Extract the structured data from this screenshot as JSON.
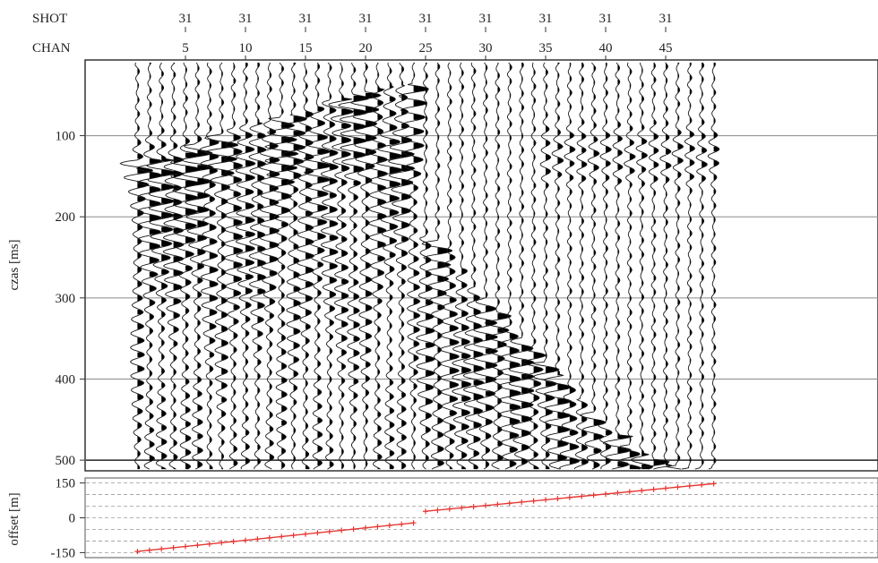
{
  "chart_data": [
    {
      "type": "seismic_record",
      "header": {
        "shot_label": "SHOT",
        "chan_label": "CHAN",
        "labelled_channels": [
          5,
          10,
          15,
          20,
          25,
          30,
          35,
          40,
          45
        ],
        "shot_values": [
          31,
          31,
          31,
          31,
          31,
          31,
          31,
          31,
          31
        ],
        "first_channel_x": 1,
        "last_channel_x": 49
      },
      "ylabel": "czas [ms]",
      "yticks": [
        100,
        200,
        300,
        400,
        500
      ],
      "ylim": [
        10,
        512
      ],
      "grid": true,
      "trace_groups": [
        {
          "first_channel": 1,
          "last_channel": 24,
          "first_arrival_ms": [
            130,
            130,
            130,
            125,
            120,
            112,
            104,
            98,
            92,
            88,
            85,
            82,
            78,
            74,
            70,
            65,
            58,
            54,
            50,
            45,
            42,
            40,
            38,
            36
          ]
        },
        {
          "first_channel": 25,
          "last_channel": 49,
          "first_arrival_ms": [
            225,
            230,
            245,
            265,
            285,
            300,
            318,
            335,
            350,
            365,
            380,
            395,
            410,
            425,
            440,
            455,
            470,
            482,
            492,
            500,
            506,
            508,
            510,
            510,
            510
          ]
        }
      ],
      "wave_colors": {
        "line": "#1a1a1a",
        "fill": "#000000"
      }
    },
    {
      "type": "line",
      "ylabel": "offset [m]",
      "yticks": [
        -150,
        0,
        150
      ],
      "ylim": [
        -160,
        160
      ],
      "series": [
        {
          "x_channel_range": [
            1,
            24
          ],
          "y_range": [
            -145,
            -22
          ],
          "color": "#e53935",
          "marker": "+"
        },
        {
          "x_channel_range": [
            25,
            49
          ],
          "y_range": [
            28,
            147
          ],
          "color": "#e53935",
          "marker": "+"
        }
      ],
      "grid": "dashed"
    }
  ]
}
